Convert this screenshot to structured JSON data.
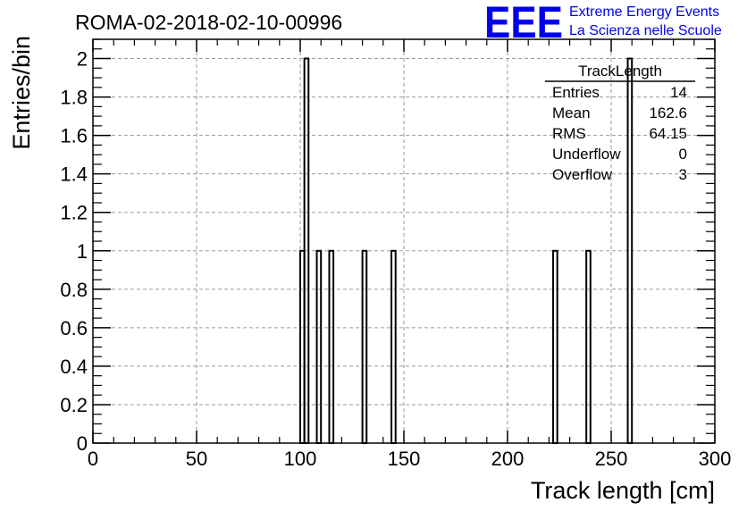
{
  "title": "ROMA-02-2018-02-10-00996",
  "logo": {
    "text": "EEE",
    "line1": "Extreme Energy Events",
    "line2": "La Scienza nelle Scuole",
    "color": "#0000ee"
  },
  "stats": {
    "name": "TrackLength",
    "rows": [
      {
        "label": "Entries",
        "value": "14"
      },
      {
        "label": "Mean",
        "value": "162.6"
      },
      {
        "label": "RMS",
        "value": "64.15"
      },
      {
        "label": "Underflow",
        "value": "0"
      },
      {
        "label": "Overflow",
        "value": "3"
      }
    ]
  },
  "chart_data": {
    "type": "bar",
    "style": "step-histogram",
    "xlabel": "Track length [cm]",
    "ylabel": "Entries/bin",
    "xlim": [
      0,
      300
    ],
    "ylim": [
      0,
      2.1
    ],
    "bin_width": 2,
    "grid": true,
    "x_ticks": [
      "0",
      "50",
      "100",
      "150",
      "200",
      "250",
      "300"
    ],
    "y_ticks": [
      "0",
      "0.2",
      "0.4",
      "0.6",
      "0.8",
      "1",
      "1.2",
      "1.4",
      "1.6",
      "1.8",
      "2"
    ],
    "bins": [
      {
        "x": 100,
        "value": 1
      },
      {
        "x": 102,
        "value": 2
      },
      {
        "x": 108,
        "value": 1
      },
      {
        "x": 114,
        "value": 1
      },
      {
        "x": 130,
        "value": 1
      },
      {
        "x": 144,
        "value": 1
      },
      {
        "x": 222,
        "value": 1
      },
      {
        "x": 238,
        "value": 1
      },
      {
        "x": 258,
        "value": 2
      }
    ]
  }
}
